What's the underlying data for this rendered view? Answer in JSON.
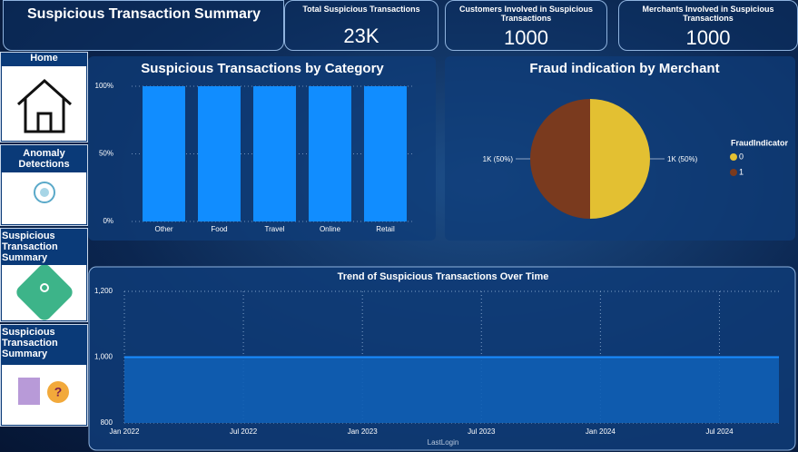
{
  "header": {
    "title": "Suspicious Transaction Summary"
  },
  "kpis": [
    {
      "label": "Total Suspicious Transactions",
      "value": "23K"
    },
    {
      "label": "Customers Involved in Suspicious Transactions",
      "value": "1000"
    },
    {
      "label": "Merchants Involved in Suspicious Transactions",
      "value": "1000"
    }
  ],
  "nav": [
    {
      "label": "Home"
    },
    {
      "label": "Anomaly Detections"
    },
    {
      "label": "Suspicious Transaction Summary"
    },
    {
      "label": "Suspicious Transaction Summary"
    }
  ],
  "chart_data": [
    {
      "type": "bar",
      "title": "Suspicious Transactions by Category",
      "categories": [
        "Other",
        "Food",
        "Travel",
        "Online",
        "Retail"
      ],
      "values": [
        100,
        100,
        100,
        100,
        100
      ],
      "color": "#118dff",
      "ylim": [
        0,
        100
      ],
      "yticks": [
        {
          "value": 0,
          "label": "0%"
        },
        {
          "value": 50,
          "label": "50%"
        },
        {
          "value": 100,
          "label": "100%"
        }
      ],
      "grid": true
    },
    {
      "type": "pie",
      "title": "Fraud indication by Merchant",
      "categories": [
        "0",
        "1"
      ],
      "values": [
        1000,
        1000
      ],
      "value_labels": [
        "1K (50%)",
        "1K (50%)"
      ],
      "colors": [
        "#e3c032",
        "#7a3a1e"
      ],
      "legend_title": "FraudIndicator"
    },
    {
      "type": "area",
      "title": "Trend of Suspicious Transactions Over Time",
      "x": [
        "2022-01",
        "2024-10"
      ],
      "values": [
        1000,
        1000
      ],
      "color": "#1a8cff",
      "xlim": [
        "2022-01",
        "2024-10"
      ],
      "xticks": [
        {
          "value": "2022-01",
          "label": "Jan 2022"
        },
        {
          "value": "2022-07",
          "label": "Jul 2022"
        },
        {
          "value": "2023-01",
          "label": "Jan 2023"
        },
        {
          "value": "2023-07",
          "label": "Jul 2023"
        },
        {
          "value": "2024-01",
          "label": "Jan 2024"
        },
        {
          "value": "2024-07",
          "label": "Jul 2024"
        }
      ],
      "ylim": [
        800,
        1200
      ],
      "yticks": [
        800,
        {
          "value": 1000,
          "label": "1,000"
        },
        {
          "value": 1200,
          "label": "1,200"
        }
      ],
      "xlabel": "LastLogin",
      "grid": true
    }
  ]
}
